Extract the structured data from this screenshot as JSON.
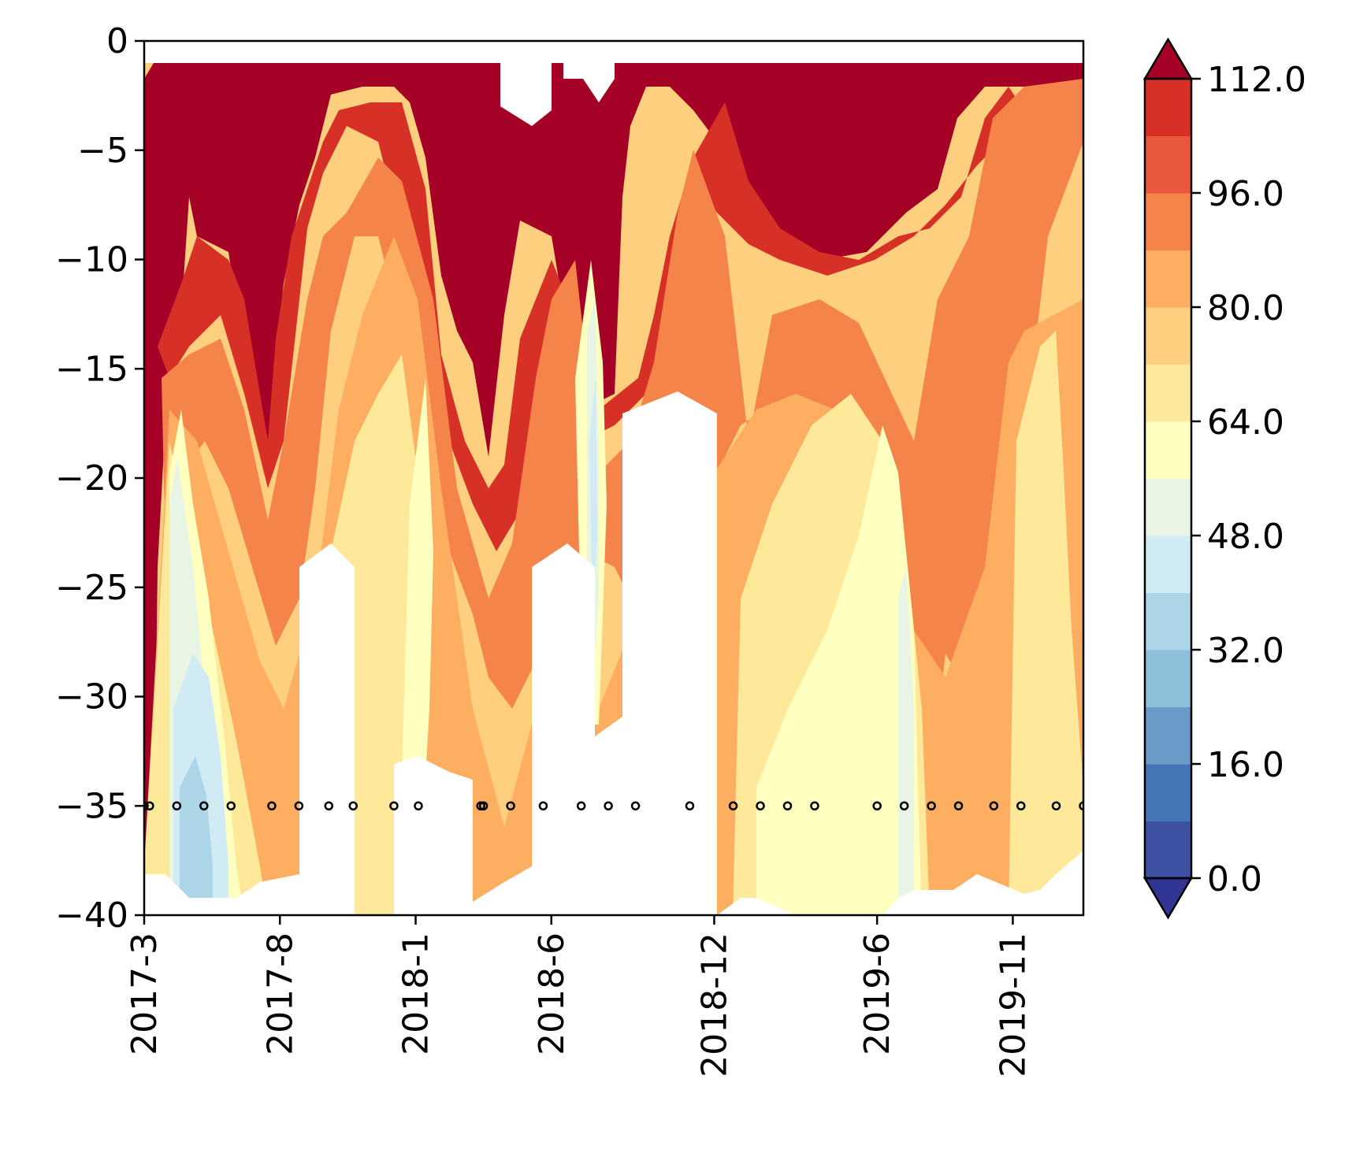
{
  "chart_data": {
    "type": "contourf",
    "title": "",
    "xlabel": "",
    "ylabel": "",
    "x_tick_labels": [
      "2017-3",
      "2017-8",
      "2018-1",
      "2018-6",
      "2018-12",
      "2019-6",
      "2019-11"
    ],
    "y_ticks": [
      0,
      -5,
      -10,
      -15,
      -20,
      -25,
      -30,
      -35,
      -40
    ],
    "y_tick_labels": [
      "0",
      "−5",
      "−10",
      "−15",
      "−20",
      "−25",
      "−30",
      "−35",
      "−40"
    ],
    "ylim": [
      -40,
      0
    ],
    "colorbar": {
      "levels": [
        0,
        8,
        16,
        24,
        32,
        40,
        48,
        56,
        64,
        72,
        80,
        88,
        96,
        104,
        112
      ],
      "tick_values": [
        0,
        16,
        32,
        48,
        64,
        80,
        96,
        112
      ],
      "tick_labels": [
        "0.0",
        "16.0",
        "32.0",
        "48.0",
        "64.0",
        "80.0",
        "96.0",
        "112.0"
      ],
      "colors": [
        "#313695",
        "#3d50a2",
        "#4575b4",
        "#6a9ac8",
        "#8ebfdb",
        "#acd6e7",
        "#d0ebf3",
        "#e8f5e4",
        "#ffffbf",
        "#fee99a",
        "#fdcf7f",
        "#fdae61",
        "#f5844b",
        "#e9573c",
        "#d73027",
        "#a50026"
      ],
      "extend": "both"
    },
    "sample_depth": -35,
    "sample_points_month_index": [
      0,
      0.2,
      1.2,
      2.2,
      3.2,
      4.7,
      5.7,
      6.8,
      7.7,
      9.2,
      10.1,
      12.4,
      12.5,
      13.5,
      14.7,
      16.1,
      17.1,
      18.1,
      20.1,
      21.7,
      22.7,
      23.7,
      24.7,
      27,
      28,
      29,
      30,
      31.3,
      32.3,
      33.6,
      34.6,
      35.6
    ]
  }
}
